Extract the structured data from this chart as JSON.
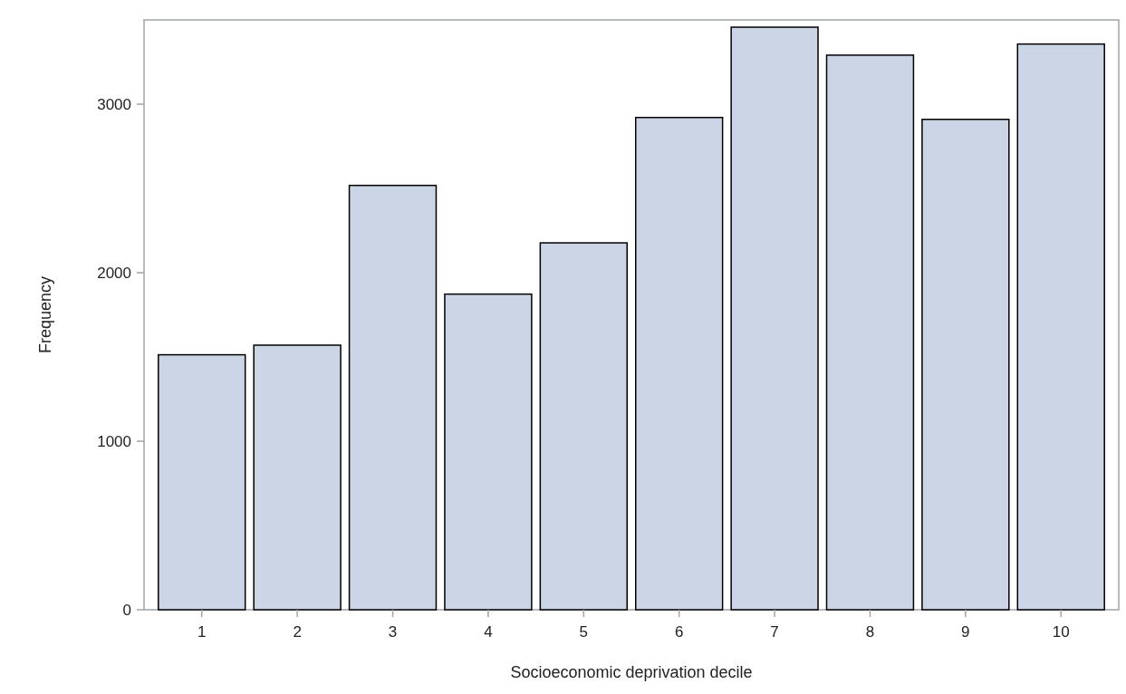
{
  "chart_data": {
    "type": "bar",
    "xlabel": "Socioeconomic deprivation decile",
    "ylabel": "Frequency",
    "categories": [
      "1",
      "2",
      "3",
      "4",
      "5",
      "6",
      "7",
      "8",
      "9",
      "10"
    ],
    "values": [
      1513,
      1570,
      2518,
      1873,
      2177,
      2921,
      3457,
      3291,
      2910,
      3357
    ],
    "color": "#cbd5e5",
    "ylim": [
      0,
      3500
    ],
    "yticks": [
      0,
      1000,
      2000,
      3000
    ],
    "grid": false
  }
}
